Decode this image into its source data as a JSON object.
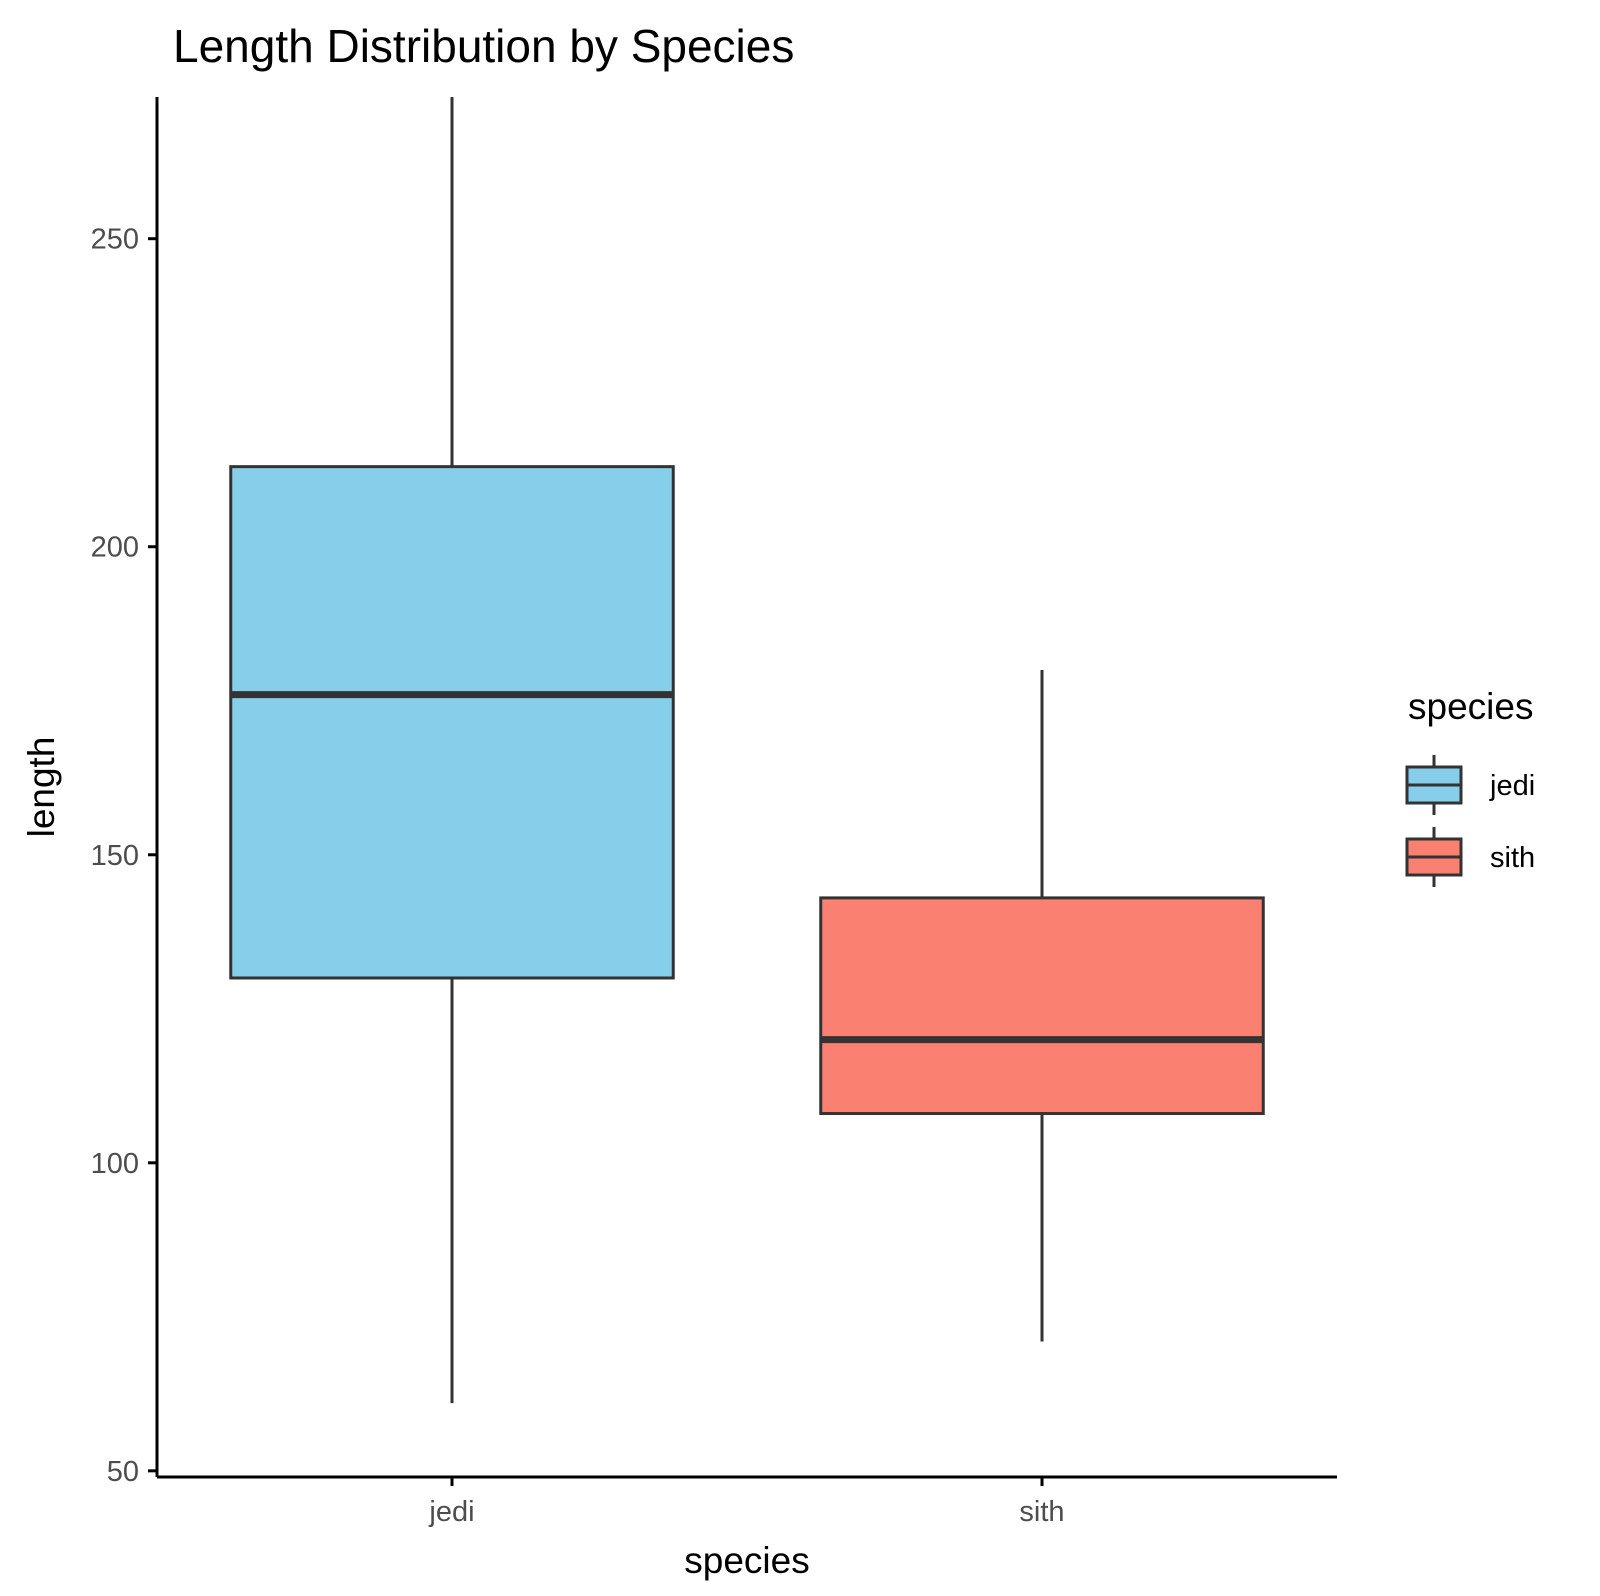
{
  "colors": {
    "jedi": "#87CEEB",
    "sith": "#FA8072",
    "outline": "#333333",
    "axis": "#000000"
  },
  "chart_data": {
    "type": "boxplot",
    "title": "Length Distribution by Species",
    "xlabel": "species",
    "ylabel": "length",
    "ylim": [
      49,
      273
    ],
    "y_ticks": [
      50,
      100,
      150,
      200,
      250
    ],
    "categories": [
      "jedi",
      "sith"
    ],
    "boxes": [
      {
        "name": "jedi",
        "min": 61,
        "q1": 130,
        "median": 176,
        "q3": 213,
        "max": 273
      },
      {
        "name": "sith",
        "min": 71,
        "q1": 108,
        "median": 120,
        "q3": 143,
        "max": 180
      }
    ],
    "grid": false,
    "legend": {
      "title": "species",
      "position": "right",
      "entries": [
        "jedi",
        "sith"
      ]
    }
  }
}
